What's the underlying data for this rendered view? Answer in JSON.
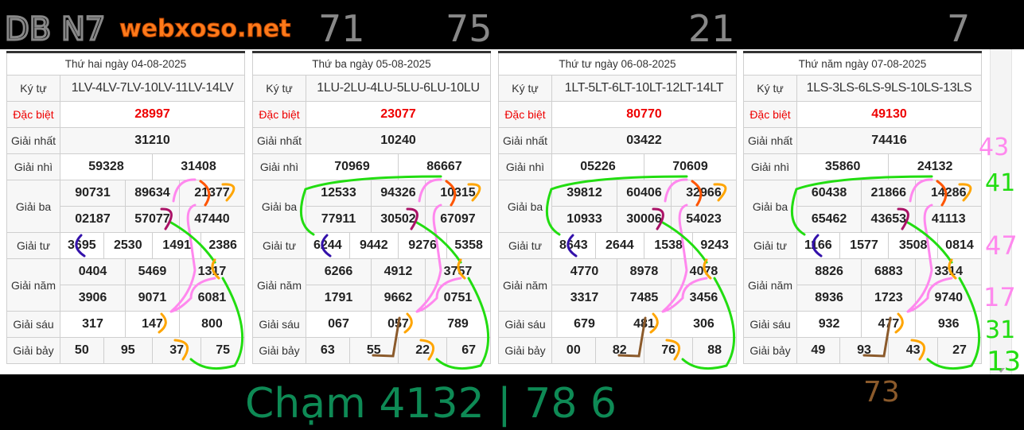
{
  "logo": "webxoso.net",
  "handwritten_top": "DB N7",
  "labels": {
    "kytu": "Ký tự",
    "dacbiet": "Đặc biệt",
    "nhat": "Giải nhất",
    "nhi": "Giải nhì",
    "ba": "Giải ba",
    "tu": "Giải tư",
    "nam": "Giải năm",
    "sau": "Giải sáu",
    "bay": "Giải bảy"
  },
  "days": [
    {
      "title": "Thứ hai ngày 04-08-2025",
      "kytu": "1LV-4LV-7LV-10LV-11LV-14LV",
      "dacbiet": "28997",
      "nhat": "31210",
      "nhi": [
        "59328",
        "31408"
      ],
      "ba": [
        "90731",
        "89634",
        "21377",
        "02187",
        "57077",
        "47440"
      ],
      "tu": [
        "3695",
        "2530",
        "1491",
        "2386"
      ],
      "nam": [
        "0404",
        "5469",
        "1317",
        "3906",
        "9071",
        "6081"
      ],
      "sau": [
        "317",
        "147",
        "800"
      ],
      "bay": [
        "50",
        "95",
        "37",
        "75"
      ]
    },
    {
      "title": "Thứ ba ngày 05-08-2025",
      "kytu": "1LU-2LU-4LU-5LU-6LU-10LU",
      "dacbiet": "23077",
      "nhat": "10240",
      "nhi": [
        "70969",
        "86667"
      ],
      "ba": [
        "12533",
        "94326",
        "10315",
        "77911",
        "30502",
        "67097"
      ],
      "tu": [
        "6244",
        "9442",
        "9276",
        "5358"
      ],
      "nam": [
        "6266",
        "4912",
        "3757",
        "1791",
        "9662",
        "0751"
      ],
      "sau": [
        "067",
        "057",
        "789"
      ],
      "bay": [
        "63",
        "55",
        "22",
        "67"
      ]
    },
    {
      "title": "Thứ tư ngày 06-08-2025",
      "kytu": "1LT-5LT-6LT-10LT-12LT-14LT",
      "dacbiet": "80770",
      "nhat": "03422",
      "nhi": [
        "05226",
        "70609"
      ],
      "ba": [
        "39812",
        "60406",
        "32966",
        "10933",
        "30006",
        "54023"
      ],
      "tu": [
        "8643",
        "2644",
        "1538",
        "9243"
      ],
      "nam": [
        "4770",
        "8978",
        "4078",
        "3317",
        "7485",
        "3456"
      ],
      "sau": [
        "679",
        "481",
        "306"
      ],
      "bay": [
        "00",
        "82",
        "76",
        "88"
      ]
    },
    {
      "title": "Thứ năm ngày 07-08-2025",
      "kytu": "1LS-3LS-6LS-9LS-10LS-13LS",
      "dacbiet": "49130",
      "nhat": "74416",
      "nhi": [
        "35860",
        "24132"
      ],
      "ba": [
        "60438",
        "21866",
        "14286",
        "65462",
        "43653",
        "41113"
      ],
      "tu": [
        "1166",
        "1577",
        "3508",
        "0814"
      ],
      "nam": [
        "8826",
        "6883",
        "3314",
        "8936",
        "1723",
        "9740"
      ],
      "sau": [
        "932",
        "477",
        "936"
      ],
      "bay": [
        "49",
        "93",
        "43",
        "27"
      ]
    }
  ],
  "annotations": {
    "grey": [
      "71",
      "75",
      "21",
      "7"
    ],
    "green": [
      "41",
      "31",
      "13"
    ],
    "pink": [
      "43",
      "47",
      "17"
    ],
    "brown": "73",
    "bottom_note": "Chạm 4132 | 78 6"
  },
  "colors": {
    "special": "#ee0000",
    "green_ink": "#22dd11",
    "pink_ink": "#ff88ee",
    "orange_ink": "#ffa500",
    "note_ink": "#0e8a55",
    "logo": "#ff7a1a"
  }
}
